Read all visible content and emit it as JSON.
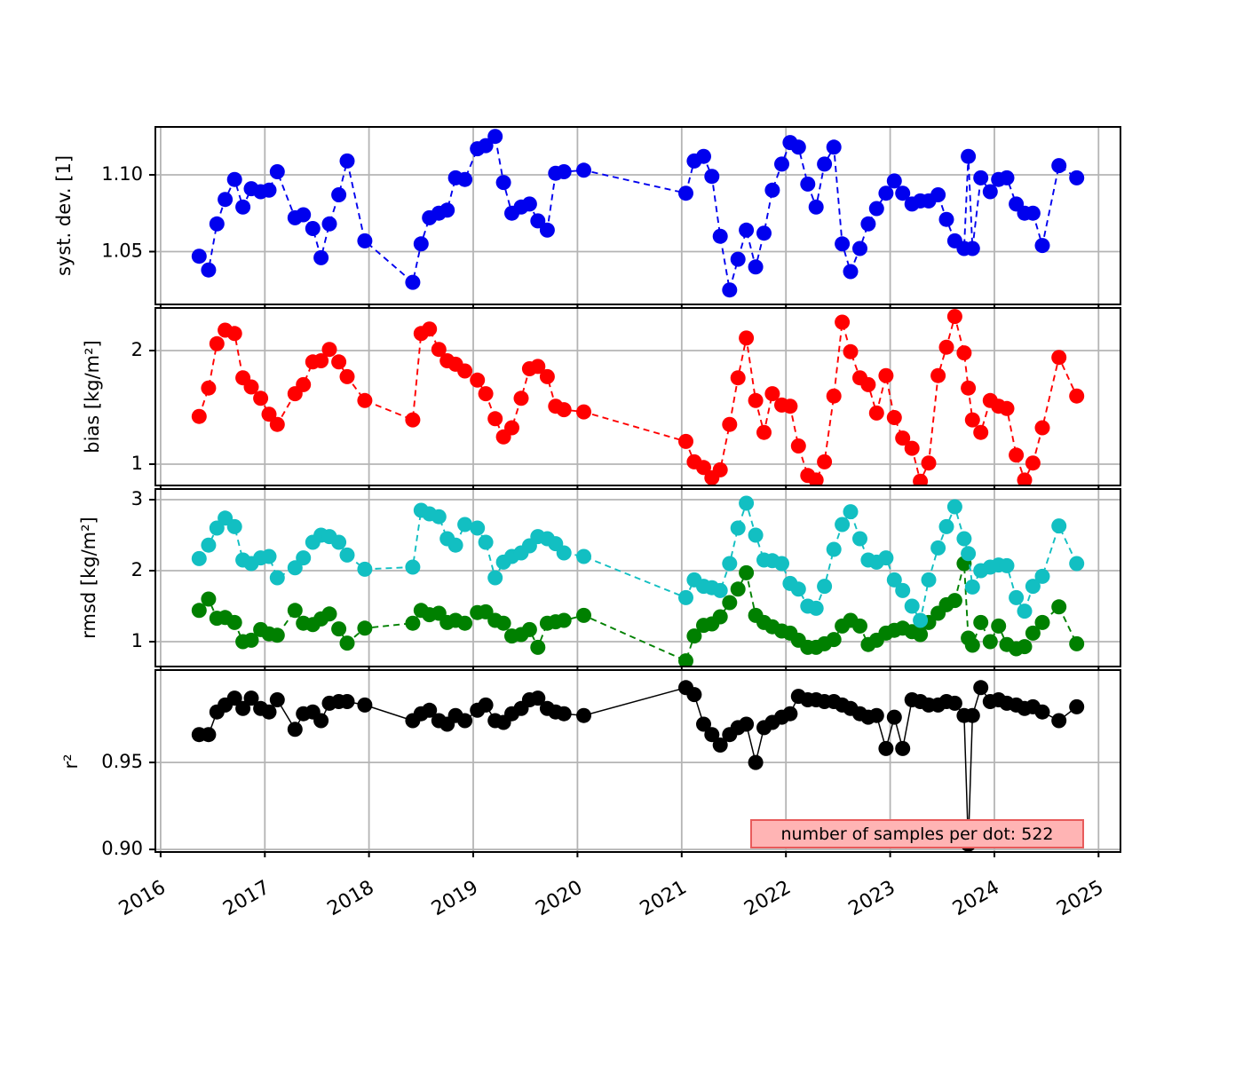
{
  "chart_data": {
    "type": "line",
    "title": "",
    "background": "#ffffff",
    "grid": true,
    "grid_color": "#b4b4b4",
    "annotation": {
      "text": "number of samples per dot: 522",
      "bg": "#ffb4b4",
      "border": "#e85b5b"
    },
    "x_axis": {
      "range": [
        2015.95,
        2025.21
      ],
      "ticks": [
        2016,
        2017,
        2018,
        2019,
        2020,
        2021,
        2022,
        2023,
        2024,
        2025
      ],
      "tick_labels": [
        "2016",
        "2017",
        "2018",
        "2019",
        "2020",
        "2021",
        "2022",
        "2023",
        "2024",
        "2025"
      ],
      "label_rotation_deg": 30
    },
    "x": [
      2016.37,
      2016.46,
      2016.54,
      2016.62,
      2016.71,
      2016.79,
      2016.87,
      2016.96,
      2017.04,
      2017.12,
      2017.29,
      2017.37,
      2017.46,
      2017.54,
      2017.62,
      2017.71,
      2017.79,
      2017.96,
      2018.42,
      2018.5,
      2018.58,
      2018.67,
      2018.75,
      2018.83,
      2018.92,
      2019.04,
      2019.12,
      2019.21,
      2019.29,
      2019.37,
      2019.46,
      2019.54,
      2019.62,
      2019.71,
      2019.79,
      2019.87,
      2020.06,
      2021.04,
      2021.12,
      2021.21,
      2021.29,
      2021.37,
      2021.46,
      2021.54,
      2021.62,
      2021.71,
      2021.79,
      2021.87,
      2021.96,
      2022.04,
      2022.12,
      2022.21,
      2022.29,
      2022.37,
      2022.46,
      2022.54,
      2022.62,
      2022.71,
      2022.79,
      2022.87,
      2022.96,
      2023.04,
      2023.12,
      2023.21,
      2023.29,
      2023.37,
      2023.46,
      2023.54,
      2023.62,
      2023.71,
      2023.75,
      2023.79,
      2023.87,
      2023.96,
      2024.04,
      2024.12,
      2024.21,
      2024.29,
      2024.37,
      2024.46,
      2024.62,
      2024.79
    ],
    "subplots": [
      {
        "name": "syst-dev",
        "ylabel": "syst. dev. [1]",
        "ylim": [
          1.0156,
          1.1312
        ],
        "yticks": [
          {
            "v": 1.05,
            "label": "1.05"
          },
          {
            "v": 1.1,
            "label": "1.10"
          }
        ],
        "series": [
          {
            "name": "syst-dev",
            "color": "#0000ee",
            "linestyle": "dashed",
            "values": [
              1.047,
              1.038,
              1.068,
              1.084,
              1.097,
              1.079,
              1.091,
              1.089,
              1.09,
              1.102,
              1.072,
              1.074,
              1.065,
              1.046,
              1.068,
              1.087,
              1.109,
              1.057,
              1.03,
              1.055,
              1.072,
              1.075,
              1.077,
              1.098,
              1.097,
              1.117,
              1.119,
              1.125,
              1.095,
              1.075,
              1.079,
              1.081,
              1.07,
              1.064,
              1.101,
              1.102,
              1.103,
              1.088,
              1.109,
              1.112,
              1.099,
              1.06,
              1.025,
              1.045,
              1.064,
              1.04,
              1.062,
              1.09,
              1.107,
              1.121,
              1.118,
              1.094,
              1.079,
              1.107,
              1.118,
              1.055,
              1.037,
              1.052,
              1.068,
              1.078,
              1.088,
              1.096,
              1.088,
              1.081,
              1.083,
              1.083,
              1.087,
              1.071,
              1.057,
              1.052,
              1.112,
              1.052,
              1.098,
              1.089,
              1.097,
              1.098,
              1.081,
              1.075,
              1.075,
              1.054,
              1.106,
              1.098
            ]
          }
        ]
      },
      {
        "name": "bias",
        "ylabel": "bias [kg/m²]",
        "ylim": [
          0.8125,
          2.375
        ],
        "yticks": [
          {
            "v": 1,
            "label": "1"
          },
          {
            "v": 2,
            "label": "2"
          }
        ],
        "series": [
          {
            "name": "bias",
            "color": "#ff0000",
            "linestyle": "dashed",
            "values": [
              1.42,
              1.67,
              2.06,
              2.18,
              2.15,
              1.76,
              1.68,
              1.58,
              1.44,
              1.35,
              1.62,
              1.7,
              1.9,
              1.91,
              2.01,
              1.9,
              1.77,
              1.56,
              1.39,
              2.15,
              2.19,
              2.01,
              1.91,
              1.88,
              1.82,
              1.74,
              1.62,
              1.4,
              1.24,
              1.32,
              1.58,
              1.84,
              1.86,
              1.77,
              1.51,
              1.48,
              1.46,
              1.2,
              1.02,
              0.97,
              0.88,
              0.95,
              1.35,
              1.76,
              2.11,
              1.56,
              1.28,
              1.62,
              1.52,
              1.51,
              1.16,
              0.9,
              0.86,
              1.02,
              1.6,
              2.25,
              1.99,
              1.76,
              1.7,
              1.45,
              1.78,
              1.41,
              1.23,
              1.14,
              0.85,
              1.01,
              1.78,
              2.03,
              2.3,
              1.98,
              1.67,
              1.39,
              1.28,
              1.56,
              1.51,
              1.49,
              1.08,
              0.86,
              1.01,
              1.32,
              1.94,
              1.6
            ]
          }
        ]
      },
      {
        "name": "rmsd",
        "ylabel": "rmsd [kg/m²]",
        "ylim": [
          0.65,
          3.15
        ],
        "yticks": [
          {
            "v": 1,
            "label": "1"
          },
          {
            "v": 2,
            "label": "2"
          },
          {
            "v": 3,
            "label": "3"
          }
        ],
        "series": [
          {
            "name": "rmsd-green",
            "color": "#008000",
            "linestyle": "dashed",
            "values": [
              1.44,
              1.6,
              1.33,
              1.34,
              1.27,
              1.0,
              1.02,
              1.17,
              1.11,
              1.09,
              1.44,
              1.26,
              1.24,
              1.32,
              1.39,
              1.18,
              0.98,
              1.19,
              1.26,
              1.44,
              1.38,
              1.4,
              1.27,
              1.3,
              1.26,
              1.41,
              1.42,
              1.3,
              1.26,
              1.08,
              1.1,
              1.17,
              0.92,
              1.26,
              1.28,
              1.3,
              1.37,
              0.73,
              1.08,
              1.23,
              1.25,
              1.35,
              1.55,
              1.74,
              1.97,
              1.37,
              1.27,
              1.21,
              1.15,
              1.12,
              1.02,
              0.92,
              0.92,
              0.97,
              1.03,
              1.22,
              1.3,
              1.22,
              0.96,
              1.02,
              1.12,
              1.16,
              1.19,
              1.14,
              1.1,
              1.27,
              1.4,
              1.52,
              1.58,
              2.1,
              1.05,
              0.95,
              1.27,
              1.0,
              1.22,
              0.96,
              0.9,
              0.93,
              1.12,
              1.27,
              1.49,
              0.97
            ]
          },
          {
            "name": "rmsd-cyan",
            "color": "#12bfc2",
            "linestyle": "dashed",
            "values": [
              2.17,
              2.36,
              2.6,
              2.74,
              2.62,
              2.15,
              2.1,
              2.18,
              2.2,
              1.9,
              2.04,
              2.18,
              2.4,
              2.5,
              2.48,
              2.4,
              2.22,
              2.02,
              2.05,
              2.85,
              2.8,
              2.76,
              2.45,
              2.36,
              2.65,
              2.6,
              2.4,
              1.9,
              2.12,
              2.2,
              2.25,
              2.35,
              2.48,
              2.45,
              2.38,
              2.25,
              2.2,
              1.62,
              1.87,
              1.78,
              1.76,
              1.72,
              2.1,
              2.6,
              2.95,
              2.5,
              2.15,
              2.14,
              2.1,
              1.82,
              1.74,
              1.5,
              1.47,
              1.78,
              2.3,
              2.65,
              2.83,
              2.45,
              2.15,
              2.12,
              2.18,
              1.87,
              1.72,
              1.5,
              1.3,
              1.87,
              2.32,
              2.62,
              2.9,
              2.45,
              2.24,
              1.77,
              2.0,
              2.05,
              2.08,
              2.07,
              1.62,
              1.43,
              1.78,
              1.92,
              2.63,
              2.1
            ]
          }
        ]
      },
      {
        "name": "r2",
        "ylabel": "r²",
        "ylim": [
          0.8985,
          1.0031
        ],
        "yticks": [
          {
            "v": 0.9,
            "label": "0.90"
          },
          {
            "v": 0.95,
            "label": "0.95"
          }
        ],
        "series": [
          {
            "name": "r2",
            "color": "#000000",
            "linestyle": "solid",
            "values": [
              0.966,
              0.966,
              0.979,
              0.983,
              0.987,
              0.981,
              0.987,
              0.981,
              0.979,
              0.986,
              0.969,
              0.978,
              0.979,
              0.974,
              0.984,
              0.985,
              0.985,
              0.983,
              0.974,
              0.978,
              0.98,
              0.974,
              0.972,
              0.977,
              0.974,
              0.98,
              0.983,
              0.974,
              0.973,
              0.978,
              0.981,
              0.986,
              0.987,
              0.981,
              0.979,
              0.978,
              0.977,
              0.993,
              0.989,
              0.972,
              0.966,
              0.96,
              0.966,
              0.97,
              0.972,
              0.95,
              0.97,
              0.973,
              0.976,
              0.978,
              0.988,
              0.986,
              0.986,
              0.985,
              0.985,
              0.983,
              0.981,
              0.978,
              0.976,
              0.977,
              0.958,
              0.976,
              0.958,
              0.986,
              0.985,
              0.983,
              0.983,
              0.985,
              0.984,
              0.977,
              0.903,
              0.977,
              0.993,
              0.985,
              0.986,
              0.984,
              0.983,
              0.981,
              0.982,
              0.979,
              0.974,
              0.982
            ]
          }
        ]
      }
    ]
  }
}
